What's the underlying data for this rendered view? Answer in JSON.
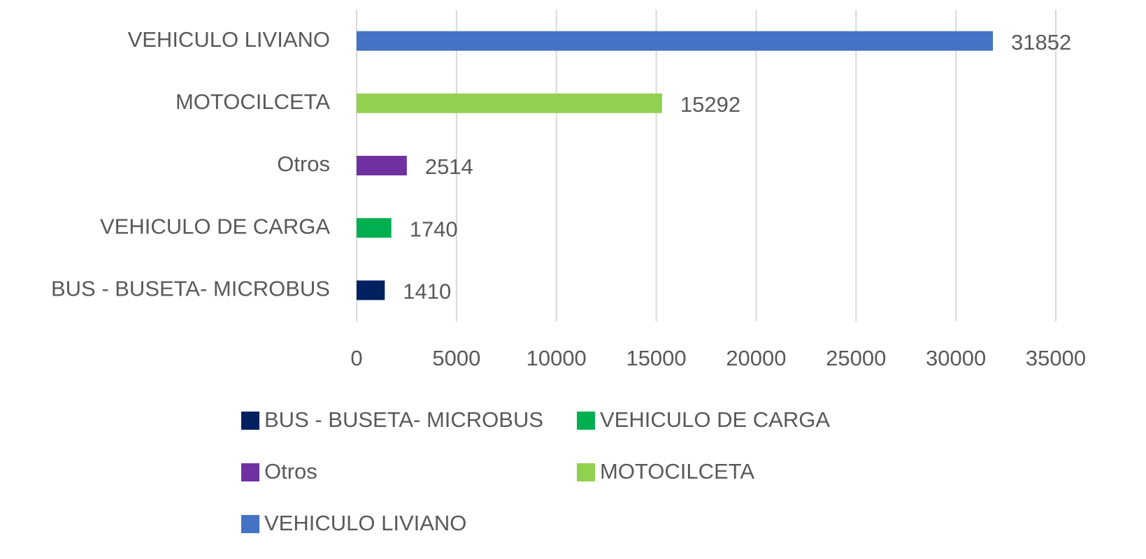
{
  "chart_data": {
    "type": "bar",
    "orientation": "horizontal",
    "categories": [
      "BUS - BUSETA- MICROBUS",
      "VEHICULO DE CARGA",
      "Otros",
      "MOTOCILCETA",
      "VEHICULO LIVIANO"
    ],
    "values": [
      1410,
      1740,
      2514,
      15292,
      31852
    ],
    "colors": [
      "#002060",
      "#00b050",
      "#7030a0",
      "#92d050",
      "#4472c4"
    ],
    "xlim": [
      0,
      35000
    ],
    "xticks": [
      0,
      5000,
      10000,
      15000,
      20000,
      25000,
      30000,
      35000
    ],
    "grid": true,
    "legend": "bottom"
  }
}
